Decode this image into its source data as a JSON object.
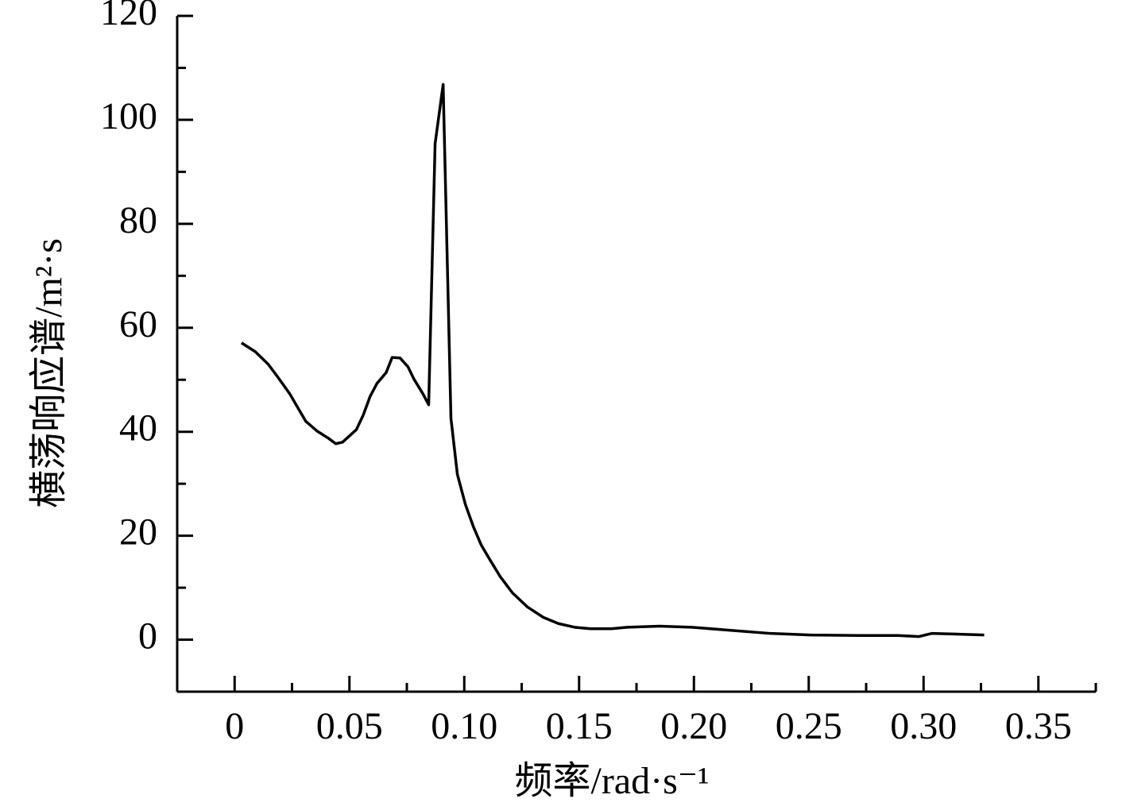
{
  "chart_data": {
    "type": "line",
    "xlabel": "频率/rad·s⁻¹",
    "ylabel": "横荡响应谱/m²·s",
    "xlim": [
      -0.025,
      0.375
    ],
    "ylim": [
      -10,
      120
    ],
    "xticks": [
      0,
      0.05,
      {
        "value": 0.1,
        "label": "0.10"
      },
      0.15,
      {
        "value": 0.2,
        "label": "0.20"
      },
      0.25,
      {
        "value": 0.3,
        "label": "0.30"
      },
      0.35
    ],
    "yticks": [
      0,
      20,
      40,
      60,
      80,
      100,
      120
    ],
    "x_minor_ticks": [
      0.025,
      0.075,
      0.125,
      0.175,
      0.225,
      0.275,
      0.325,
      0.375
    ],
    "y_minor_ticks": [
      -10,
      10,
      30,
      50,
      70,
      90,
      110
    ],
    "series": [
      {
        "color": "#000000",
        "x": [
          0.003,
          0.009,
          0.0146,
          0.019,
          0.024,
          0.031,
          0.036,
          0.041,
          0.044,
          0.047,
          0.053,
          0.056,
          0.059,
          0.062,
          0.066,
          0.0686,
          0.072,
          0.0755,
          0.078,
          0.082,
          0.0845,
          0.0873,
          0.0908,
          0.0942,
          0.097,
          0.1005,
          0.104,
          0.1074,
          0.111,
          0.1157,
          0.121,
          0.1275,
          0.1344,
          0.141,
          0.148,
          0.155,
          0.164,
          0.171,
          0.185,
          0.199,
          0.216,
          0.2335,
          0.251,
          0.2717,
          0.289,
          0.298,
          0.3035,
          0.313,
          0.3264
        ],
        "values": [
          57.1,
          55.4,
          53,
          50.4,
          47.3,
          42,
          40.1,
          38.7,
          37.7,
          38,
          40.4,
          43.2,
          46.8,
          49.3,
          51.4,
          54.3,
          54.2,
          52.5,
          50.2,
          47.3,
          45.2,
          95.4,
          106.8,
          42.6,
          31.8,
          26,
          21.7,
          18.2,
          15.5,
          12.1,
          9,
          6.3,
          4.3,
          3.1,
          2.4,
          2.1,
          2.1,
          2.4,
          2.6,
          2.4,
          1.8,
          1.2,
          0.9,
          0.8,
          0.8,
          0.6,
          1.2,
          1.1,
          0.9
        ]
      }
    ]
  }
}
